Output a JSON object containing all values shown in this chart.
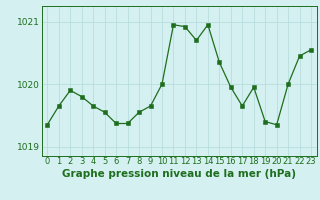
{
  "x": [
    0,
    1,
    2,
    3,
    4,
    5,
    6,
    7,
    8,
    9,
    10,
    11,
    12,
    13,
    14,
    15,
    16,
    17,
    18,
    19,
    20,
    21,
    22,
    23
  ],
  "y": [
    1019.35,
    1019.65,
    1019.9,
    1019.8,
    1019.65,
    1019.55,
    1019.37,
    1019.37,
    1019.55,
    1019.65,
    1020.0,
    1020.95,
    1020.92,
    1020.7,
    1020.95,
    1020.35,
    1019.95,
    1019.65,
    1019.95,
    1019.4,
    1019.35,
    1020.0,
    1020.45,
    1020.55
  ],
  "line_color": "#1e6e1e",
  "marker_color": "#1e6e1e",
  "bg_color": "#d4f0f0",
  "grid_color": "#b8dede",
  "text_color": "#1e6e1e",
  "title": "Graphe pression niveau de la mer (hPa)",
  "yticks": [
    1019,
    1020,
    1021
  ],
  "ylim": [
    1018.85,
    1021.25
  ],
  "xlim": [
    -0.5,
    23.5
  ],
  "xtick_labels": [
    "0",
    "1",
    "2",
    "3",
    "4",
    "5",
    "6",
    "7",
    "8",
    "9",
    "10",
    "11",
    "12",
    "13",
    "14",
    "15",
    "16",
    "17",
    "18",
    "19",
    "20",
    "21",
    "22",
    "23"
  ],
  "title_fontsize": 7.5,
  "tick_fontsize": 6.5
}
